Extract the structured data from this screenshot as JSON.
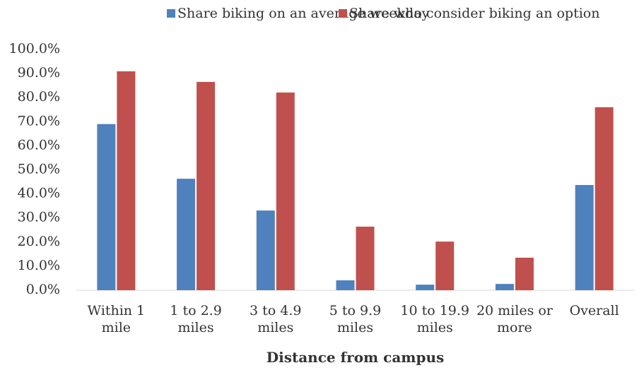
{
  "chart_data": {
    "type": "bar",
    "xlabel": "Distance from campus",
    "categories": [
      "Within 1 mile",
      "1 to 2.9 miles",
      "3 to 4.9 miles",
      "5 to 9.9 miles",
      "10 to 19.9 miles",
      "20 miles or more",
      "Overall"
    ],
    "series": [
      {
        "name": "Share biking on an average weekday",
        "color": "#4f81bd",
        "values": [
          69.0,
          46.3,
          33.1,
          4.1,
          2.3,
          2.6,
          43.7
        ]
      },
      {
        "name": "Share who consider biking an option",
        "color": "#c0504d",
        "values": [
          90.9,
          86.5,
          82.1,
          26.4,
          20.2,
          13.5,
          76.0
        ]
      }
    ],
    "ylim": [
      0,
      100
    ],
    "yticks": [
      {
        "value": 0,
        "label": "0.0%"
      },
      {
        "value": 10,
        "label": "10.0%"
      },
      {
        "value": 20,
        "label": "20.0%"
      },
      {
        "value": 30,
        "label": "30.0%"
      },
      {
        "value": 40,
        "label": "40.0%"
      },
      {
        "value": 50,
        "label": "50.0%"
      },
      {
        "value": 60,
        "label": "60.0%"
      },
      {
        "value": 70,
        "label": "70.0%"
      },
      {
        "value": 80,
        "label": "80.0%"
      },
      {
        "value": 90,
        "label": "90.0%"
      },
      {
        "value": 100,
        "label": "100.0%"
      }
    ],
    "legend": "top"
  }
}
